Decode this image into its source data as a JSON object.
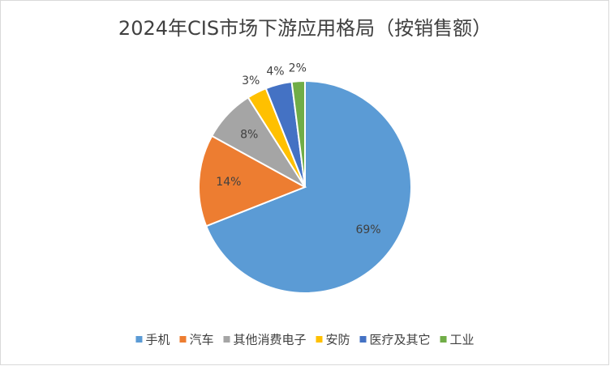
{
  "chart_data": {
    "type": "pie",
    "title": "2024年CIS市场下游应用格局（按销售额）",
    "categories": [
      "手机",
      "汽车",
      "其他消费电子",
      "安防",
      "医疗及其它",
      "工业"
    ],
    "values": [
      69,
      14,
      8,
      3,
      4,
      2
    ],
    "value_labels": [
      "69%",
      "14%",
      "8%",
      "3%",
      "4%",
      "2%"
    ],
    "colors": [
      "#5b9bd5",
      "#ed7d31",
      "#a5a5a5",
      "#ffc000",
      "#4472c4",
      "#70ad47"
    ],
    "legend": "bottom"
  }
}
